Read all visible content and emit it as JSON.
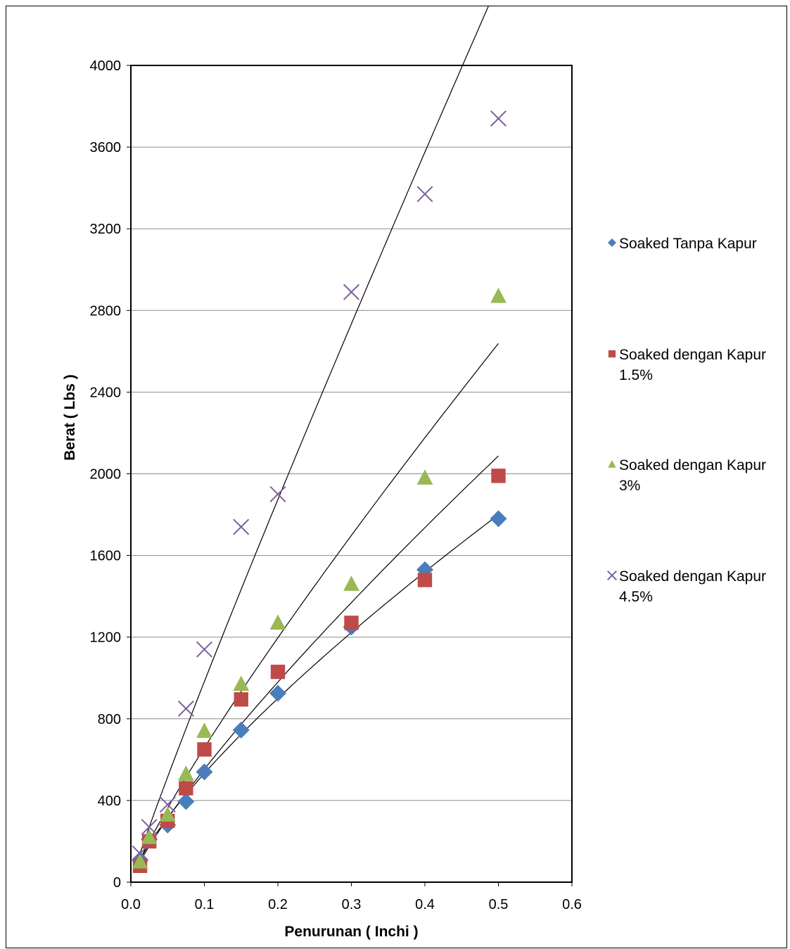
{
  "chart_data": {
    "type": "scatter",
    "title": "",
    "xlabel": "Penurunan ( Inchi )",
    "ylabel": "Berat ( Lbs )",
    "xlim": [
      0,
      0.6
    ],
    "ylim": [
      0,
      4000
    ],
    "x_ticks": [
      "0.0",
      "0.1",
      "0.2",
      "0.3",
      "0.4",
      "0.5",
      "0.6"
    ],
    "y_ticks": [
      "0",
      "400",
      "800",
      "1200",
      "1600",
      "2000",
      "2400",
      "2800",
      "3200",
      "3600",
      "4000"
    ],
    "grid": "horizontal",
    "legend_position": "right",
    "trendlines": true,
    "series": [
      {
        "name": "Soaked Tanpa Kapur",
        "marker": "diamond",
        "color": "#4a7ebb",
        "x": [
          0.0125,
          0.025,
          0.05,
          0.075,
          0.1,
          0.15,
          0.2,
          0.3,
          0.4,
          0.5
        ],
        "y": [
          110,
          210,
          280,
          395,
          540,
          745,
          925,
          1250,
          1530,
          1780
        ]
      },
      {
        "name": "Soaked dengan Kapur 1.5%",
        "legend_lines": [
          "Soaked dengan Kapur",
          "1.5%"
        ],
        "marker": "square",
        "color": "#be4b48",
        "x": [
          0.0125,
          0.025,
          0.05,
          0.075,
          0.1,
          0.15,
          0.2,
          0.3,
          0.4,
          0.5
        ],
        "y": [
          80,
          200,
          300,
          460,
          650,
          895,
          1030,
          1270,
          1480,
          1990
        ]
      },
      {
        "name": "Soaked dengan Kapur 3%",
        "legend_lines": [
          "Soaked dengan Kapur",
          "3%"
        ],
        "marker": "triangle",
        "color": "#98b954",
        "x": [
          0.0125,
          0.025,
          0.05,
          0.075,
          0.1,
          0.15,
          0.2,
          0.3,
          0.4,
          0.5
        ],
        "y": [
          100,
          220,
          330,
          530,
          740,
          970,
          1270,
          1460,
          1980,
          2870
        ]
      },
      {
        "name": "Soaked dengan Kapur 4.5%",
        "legend_lines": [
          "Soaked dengan Kapur",
          "4.5%"
        ],
        "marker": "x",
        "color": "#7d60a0",
        "x": [
          0.0125,
          0.025,
          0.05,
          0.075,
          0.1,
          0.15,
          0.2,
          0.3,
          0.4,
          0.5
        ],
        "y": [
          140,
          270,
          380,
          850,
          1140,
          1740,
          1900,
          2890,
          3370,
          3740
        ]
      }
    ]
  }
}
